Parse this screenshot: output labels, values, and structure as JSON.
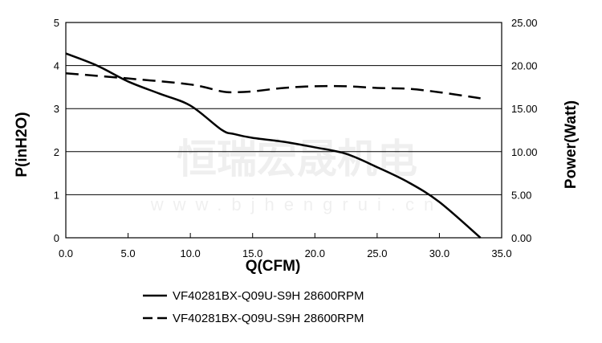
{
  "chart_data": {
    "type": "line",
    "xlabel": "Q(CFM)",
    "ylabel": "P(inH2O)",
    "y2label": "Power(Watt)",
    "xlim": [
      0,
      35
    ],
    "ylim": [
      0,
      5
    ],
    "y2lim": [
      0,
      25
    ],
    "xticks": [
      "0.0",
      "5.0",
      "10.0",
      "15.0",
      "20.0",
      "25.0",
      "30.0",
      "35.0"
    ],
    "yticks": [
      "0",
      "1",
      "2",
      "3",
      "4",
      "5"
    ],
    "y2ticks": [
      "0.00",
      "5.00",
      "10.00",
      "15.00",
      "20.00",
      "25.00"
    ],
    "grid": "horizontal",
    "legend_position": "bottom",
    "series": [
      {
        "name": "VF40281BX-Q09U-S9H 28600RPM",
        "axis": "left",
        "style": "solid",
        "x": [
          0,
          2.5,
          5,
          7.5,
          10,
          12.5,
          13.5,
          15,
          17.5,
          20,
          22.5,
          25,
          27.5,
          30,
          33.3
        ],
        "y": [
          4.28,
          4.0,
          3.63,
          3.35,
          3.07,
          2.51,
          2.41,
          2.32,
          2.23,
          2.1,
          1.95,
          1.64,
          1.29,
          0.83,
          0
        ]
      },
      {
        "name": "VF40281BX-Q09U-S9H 28600RPM",
        "axis": "right",
        "style": "dashed",
        "x": [
          0,
          5,
          10,
          12.5,
          13.5,
          15,
          17.5,
          20,
          22.5,
          25,
          27.5,
          30,
          33.3
        ],
        "y": [
          19.1,
          18.5,
          17.8,
          17.0,
          16.9,
          17.0,
          17.4,
          17.6,
          17.6,
          17.4,
          17.3,
          16.9,
          16.2
        ]
      }
    ]
  },
  "watermark": {
    "cn": "恒瑞宏晟机电",
    "url": "www.bjhengrui.cn"
  }
}
